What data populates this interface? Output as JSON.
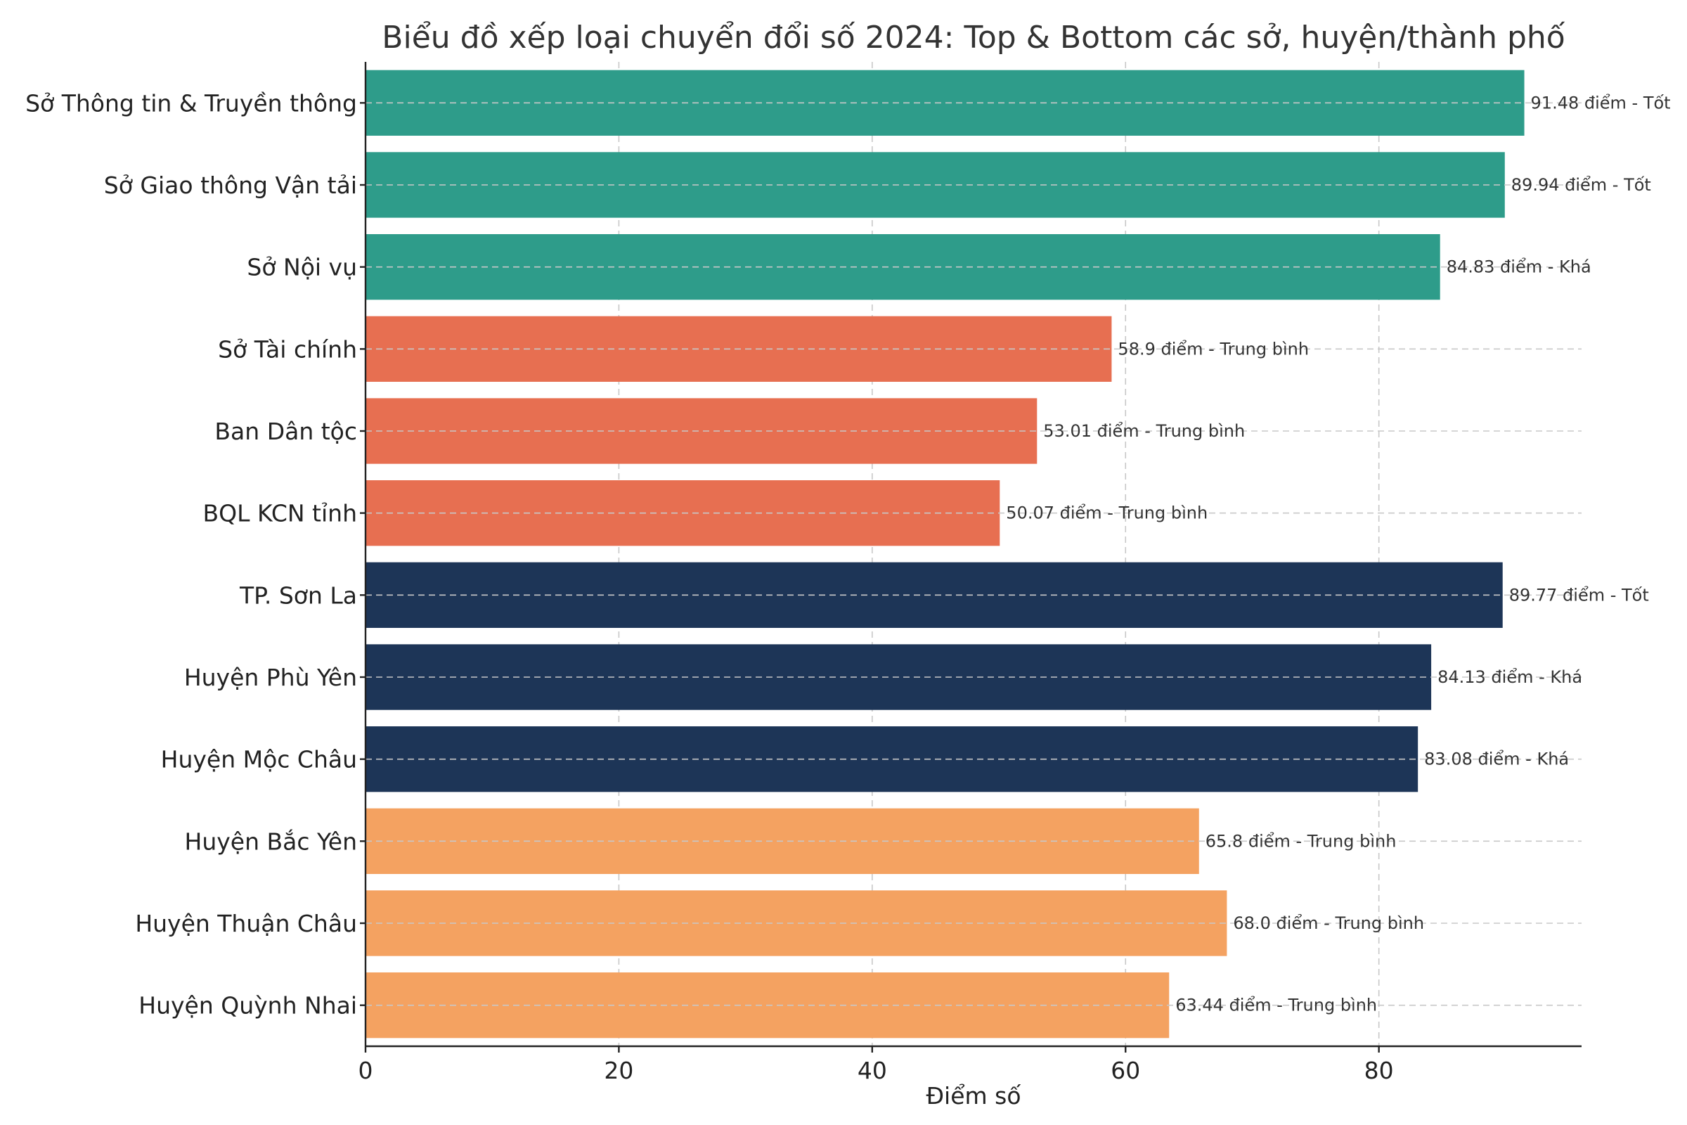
{
  "chart_data": {
    "type": "bar",
    "orientation": "horizontal",
    "title": "Biểu đồ xếp loại chuyển đổi số 2024: Top & Bottom các sở, huyện/thành phố",
    "xlabel": "Điểm số",
    "ylabel": "",
    "xlim": [
      0,
      96
    ],
    "xticks": [
      0,
      20,
      40,
      60,
      80
    ],
    "grid": true,
    "categories": [
      "Sở Thông tin & Truyền thông",
      "Sở Giao thông Vận tải",
      "Sở Nội vụ",
      "Sở Tài chính",
      "Ban Dân tộc",
      "BQL KCN tỉnh",
      "TP. Sơn La",
      "Huyện Phù Yên",
      "Huyện Mộc Châu",
      "Huyện Bắc Yên",
      "Huyện Thuận Châu",
      "Huyện Quỳnh Nhai"
    ],
    "values": [
      91.48,
      89.94,
      84.83,
      58.9,
      53.01,
      50.07,
      89.77,
      84.13,
      83.08,
      65.8,
      68.0,
      63.44
    ],
    "labels": [
      "91.48 điểm - Tốt",
      "89.94 điểm - Tốt",
      "84.83 điểm - Khá",
      "58.9 điểm - Trung bình",
      "53.01 điểm - Trung bình",
      "50.07 điểm - Trung bình",
      "89.77 điểm - Tốt",
      "84.13 điểm - Khá",
      "83.08 điểm - Khá",
      "65.8 điểm - Trung bình",
      "68.0 điểm - Trung bình",
      "63.44 điểm - Trung bình"
    ],
    "colors": [
      "#2e9c8a",
      "#2e9c8a",
      "#2e9c8a",
      "#e76f51",
      "#e76f51",
      "#e76f51",
      "#1d3557",
      "#1d3557",
      "#1d3557",
      "#f4a261",
      "#f4a261",
      "#f4a261"
    ]
  }
}
